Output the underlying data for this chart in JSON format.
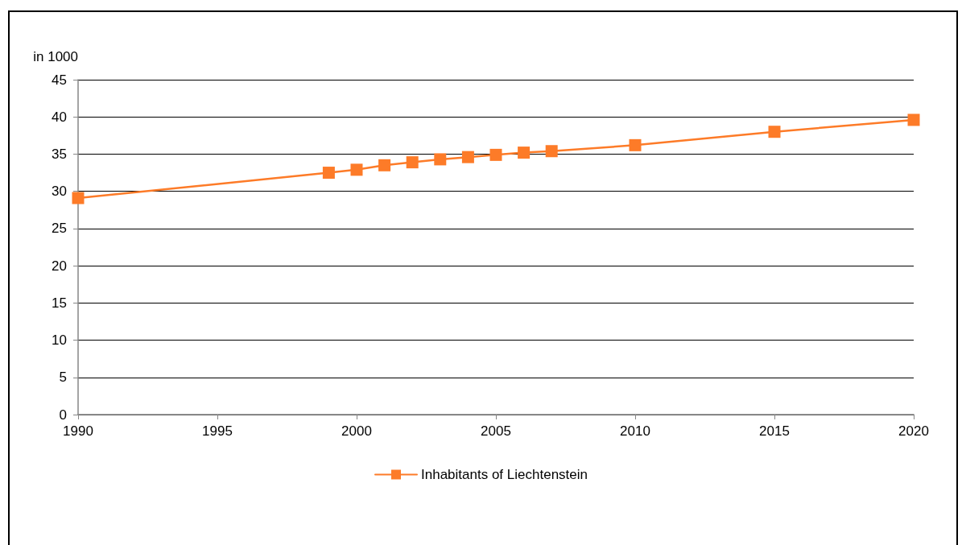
{
  "chart_data": {
    "type": "line",
    "ylabel": "in 1000",
    "x": [
      1990,
      1999,
      2000,
      2001,
      2002,
      2003,
      2004,
      2005,
      2006,
      2007,
      2010,
      2015,
      2020
    ],
    "series": [
      {
        "name": "Inhabitants of Liechtenstein",
        "color": "#fd7b28",
        "values": [
          29.1,
          32.5,
          32.9,
          33.5,
          33.9,
          34.3,
          34.6,
          34.9,
          35.2,
          35.4,
          36.2,
          38.0,
          39.6
        ]
      }
    ],
    "xlim": [
      1990,
      2020
    ],
    "xticks": [
      1990,
      1995,
      2000,
      2005,
      2010,
      2015,
      2020
    ],
    "ylim": [
      0,
      45
    ],
    "yticks": [
      0,
      5,
      10,
      15,
      20,
      25,
      30,
      35,
      40,
      45
    ],
    "grid": "y",
    "legend": "bottom",
    "marker": "square",
    "line_style": "solid"
  }
}
